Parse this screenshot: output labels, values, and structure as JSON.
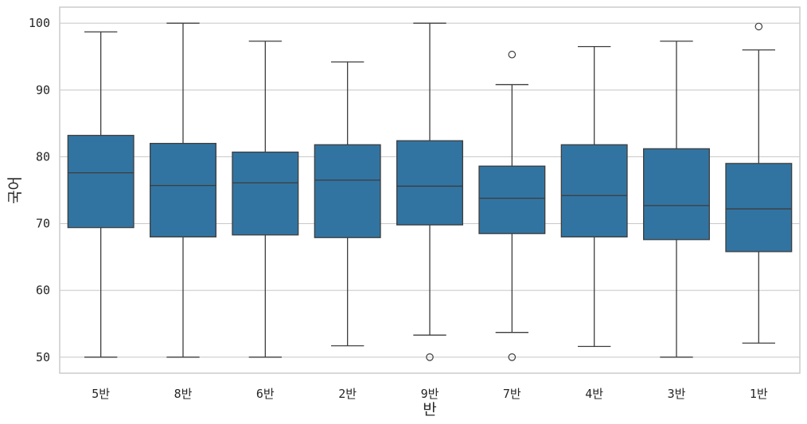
{
  "chart_data": {
    "type": "box",
    "xlabel": "반",
    "ylabel": "국어",
    "ylim": [
      47.6,
      102.4
    ],
    "yticks": [
      50,
      60,
      70,
      80,
      90,
      100
    ],
    "grid": "horizontal",
    "colors": {
      "box": "#3274a1",
      "line": "#3d3d3d",
      "grid": "#cccccc",
      "frame": "#cccccc"
    },
    "categories": [
      "5반",
      "8반",
      "6반",
      "2반",
      "9반",
      "7반",
      "4반",
      "3반",
      "1반"
    ],
    "boxes": [
      {
        "category": "5반",
        "q1": 69.4,
        "median": 77.6,
        "q3": 83.2,
        "whisker_low": 50.0,
        "whisker_high": 98.7,
        "outliers": []
      },
      {
        "category": "8반",
        "q1": 68.0,
        "median": 75.7,
        "q3": 82.0,
        "whisker_low": 50.0,
        "whisker_high": 100.0,
        "outliers": []
      },
      {
        "category": "6반",
        "q1": 68.3,
        "median": 76.1,
        "q3": 80.7,
        "whisker_low": 50.0,
        "whisker_high": 97.3,
        "outliers": []
      },
      {
        "category": "2반",
        "q1": 67.9,
        "median": 76.5,
        "q3": 81.8,
        "whisker_low": 51.7,
        "whisker_high": 94.2,
        "outliers": []
      },
      {
        "category": "9반",
        "q1": 69.8,
        "median": 75.6,
        "q3": 82.4,
        "whisker_low": 53.3,
        "whisker_high": 100.0,
        "outliers": [
          50.0
        ]
      },
      {
        "category": "7반",
        "q1": 68.5,
        "median": 73.8,
        "q3": 78.6,
        "whisker_low": 53.7,
        "whisker_high": 90.8,
        "outliers": [
          95.3,
          50.0
        ]
      },
      {
        "category": "4반",
        "q1": 68.0,
        "median": 74.2,
        "q3": 81.8,
        "whisker_low": 51.6,
        "whisker_high": 96.5,
        "outliers": []
      },
      {
        "category": "3반",
        "q1": 67.6,
        "median": 72.7,
        "q3": 81.2,
        "whisker_low": 50.0,
        "whisker_high": 97.3,
        "outliers": []
      },
      {
        "category": "1반",
        "q1": 65.8,
        "median": 72.2,
        "q3": 79.0,
        "whisker_low": 52.1,
        "whisker_high": 96.0,
        "outliers": [
          99.5
        ]
      }
    ]
  }
}
